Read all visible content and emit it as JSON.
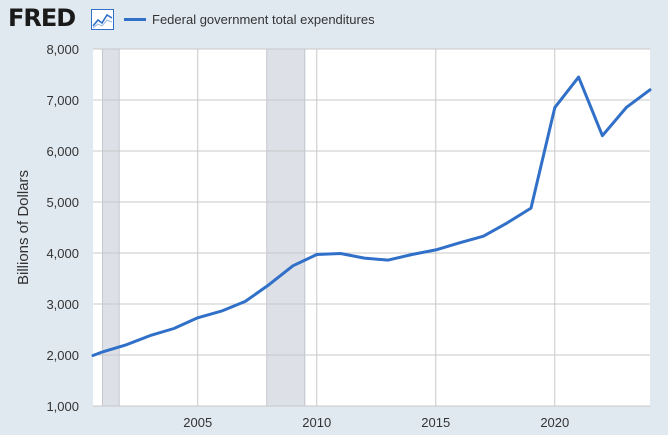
{
  "brand": {
    "logo_text": "FRED",
    "icon": "line-chart-icon"
  },
  "colors": {
    "background": "#e1e9f0",
    "plot_background": "#ffffff",
    "grid": "#c8c8c8",
    "recession": "#dde0e6",
    "series": "#3070c8",
    "text": "#333333"
  },
  "chart_data": {
    "type": "line",
    "title": "",
    "xlabel": "",
    "ylabel": "Billions of Dollars",
    "xlim": [
      2000.6,
      2024.0
    ],
    "ylim": [
      1000,
      8000
    ],
    "grid": true,
    "legend": "top-left",
    "x_ticks": [
      2005,
      2010,
      2015,
      2020
    ],
    "y_ticks": [
      1000,
      2000,
      3000,
      4000,
      5000,
      6000,
      7000,
      8000
    ],
    "x_tick_labels": [
      "2005",
      "2010",
      "2015",
      "2020"
    ],
    "y_tick_labels": [
      "1,000",
      "2,000",
      "3,000",
      "4,000",
      "5,000",
      "6,000",
      "7,000",
      "8,000"
    ],
    "recessions": [
      {
        "start": 2001.0,
        "end": 2001.7
      },
      {
        "start": 2007.9,
        "end": 2009.5
      }
    ],
    "series": [
      {
        "name": "Federal government total expenditures",
        "x": [
          2000.6,
          2001,
          2002,
          2003,
          2004,
          2005,
          2006,
          2007,
          2008,
          2009,
          2010,
          2011,
          2012,
          2013,
          2014,
          2015,
          2016,
          2017,
          2018,
          2019,
          2020,
          2021,
          2022,
          2023,
          2024.0
        ],
        "values": [
          1990,
          2060,
          2200,
          2380,
          2520,
          2730,
          2860,
          3050,
          3380,
          3750,
          3970,
          3990,
          3900,
          3860,
          3970,
          4060,
          4200,
          4330,
          4590,
          4880,
          6850,
          7450,
          6300,
          6850,
          7200
        ]
      }
    ]
  }
}
